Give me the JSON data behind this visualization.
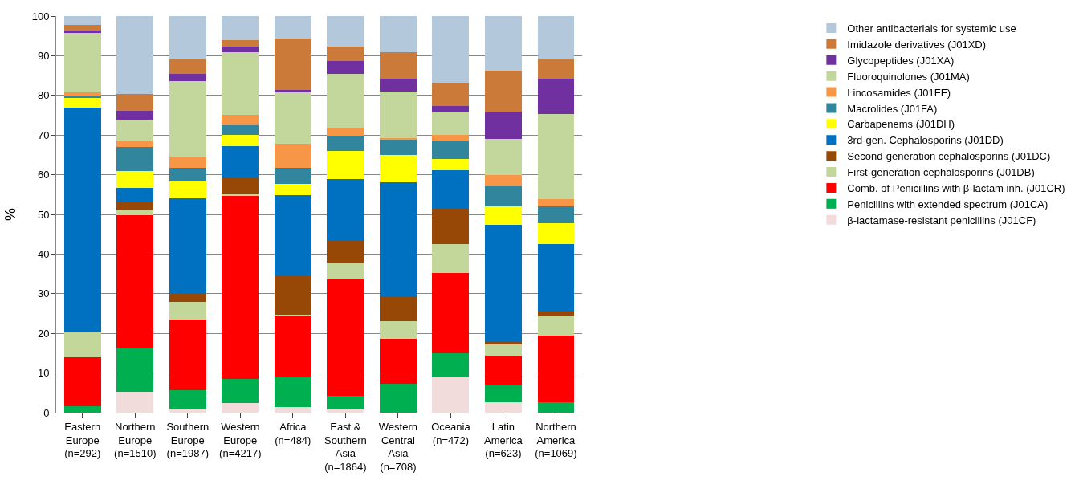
{
  "chart_data": {
    "type": "bar",
    "stacked": true,
    "ylabel": "%",
    "ylim": [
      0,
      100
    ],
    "yticks": [
      0,
      10,
      20,
      30,
      40,
      50,
      60,
      70,
      80,
      90,
      100
    ],
    "grid": "y",
    "legend": "right",
    "categories": [
      "Eastern\nEurope\n(n=292)",
      "Northern\nEurope\n(n=1510)",
      "Southern\nEurope\n(n=1987)",
      "Western\nEurope\n(n=4217)",
      "Africa\n(n=484)",
      "East &\nSouthern\nAsia\n(n=1864)",
      "Western\nCentral\nAsia\n(n=708)",
      "Oceania\n(n=472)",
      "Latin\nAmerica\n(n=623)",
      "Northern\nAmerica\n(n=1069)"
    ],
    "series": [
      {
        "name": "β-lactamase-resistant penicillins (J01CF)",
        "color": "#f2dcdb",
        "values": [
          0,
          5.2,
          1.0,
          2.4,
          1.5,
          0.8,
          0,
          9.0,
          2.7,
          0
        ]
      },
      {
        "name": "Penicillins with extended spectrum (J01CA)",
        "color": "#00b050",
        "values": [
          1.7,
          11.1,
          4.7,
          6.1,
          7.7,
          3.5,
          7.2,
          6.0,
          4.3,
          2.7
        ]
      },
      {
        "name": "Comb. of Penicillins with β-lactam inh. (J01CR)",
        "color": "#ff0000",
        "values": [
          12.3,
          33.5,
          17.7,
          46.2,
          15.1,
          29.4,
          11.5,
          20.2,
          7.4,
          16.7
        ]
      },
      {
        "name": "First-generation cephalosporins (J01DB)",
        "color": "#c4d79b",
        "values": [
          6.2,
          1.2,
          4.6,
          0.4,
          0.3,
          4.1,
          4.4,
          7.4,
          2.9,
          5.0
        ]
      },
      {
        "name": "Second-generation cephalosporins (J01DC)",
        "color": "#974706",
        "values": [
          0,
          2.2,
          2.2,
          4.3,
          10.1,
          5.5,
          6.0,
          8.9,
          0.5,
          1.1
        ]
      },
      {
        "name": "3rd-gen. Cephalosporins (J01DD)",
        "color": "#0070c0",
        "values": [
          56.8,
          3.5,
          23.9,
          7.8,
          20.1,
          15.7,
          28.9,
          9.6,
          29.6,
          17.1
        ]
      },
      {
        "name": "Carbapenems (J01DH)",
        "color": "#ffff00",
        "values": [
          2.3,
          4.3,
          4.2,
          2.9,
          2.8,
          6.9,
          6.9,
          2.8,
          4.6,
          5.1
        ]
      },
      {
        "name": "Macrolides (J01FA)",
        "color": "#31859c",
        "values": [
          0.5,
          6.1,
          3.5,
          2.4,
          4.1,
          3.7,
          4.0,
          4.6,
          5.1,
          4.4
        ]
      },
      {
        "name": "Lincosamides (J01FF)",
        "color": "#f79646",
        "values": [
          0.9,
          1.4,
          2.8,
          2.6,
          6.1,
          2.3,
          0.4,
          1.6,
          2.9,
          1.7
        ]
      },
      {
        "name": "Fluoroquinolones (J01MA)",
        "color": "#c3d69b",
        "values": [
          15.1,
          5.3,
          19.0,
          15.7,
          13.0,
          13.6,
          11.6,
          5.7,
          9.1,
          21.6
        ]
      },
      {
        "name": "Glycopeptides (J01XA)",
        "color": "#7030a0",
        "values": [
          0.5,
          2.4,
          1.9,
          1.5,
          0.6,
          3.2,
          3.4,
          1.5,
          6.8,
          8.8
        ]
      },
      {
        "name": "Imidazole derivatives (J01XD)",
        "color": "#cc7a3a",
        "values": [
          1.5,
          4.1,
          3.6,
          1.6,
          13.0,
          3.6,
          6.6,
          6.0,
          10.4,
          5.0
        ]
      },
      {
        "name": "Other antibacterials for systemic use",
        "color": "#b4c8dc",
        "values": [
          2.2,
          19.7,
          10.9,
          6.1,
          5.6,
          7.7,
          9.1,
          16.7,
          13.7,
          10.8
        ]
      }
    ]
  }
}
